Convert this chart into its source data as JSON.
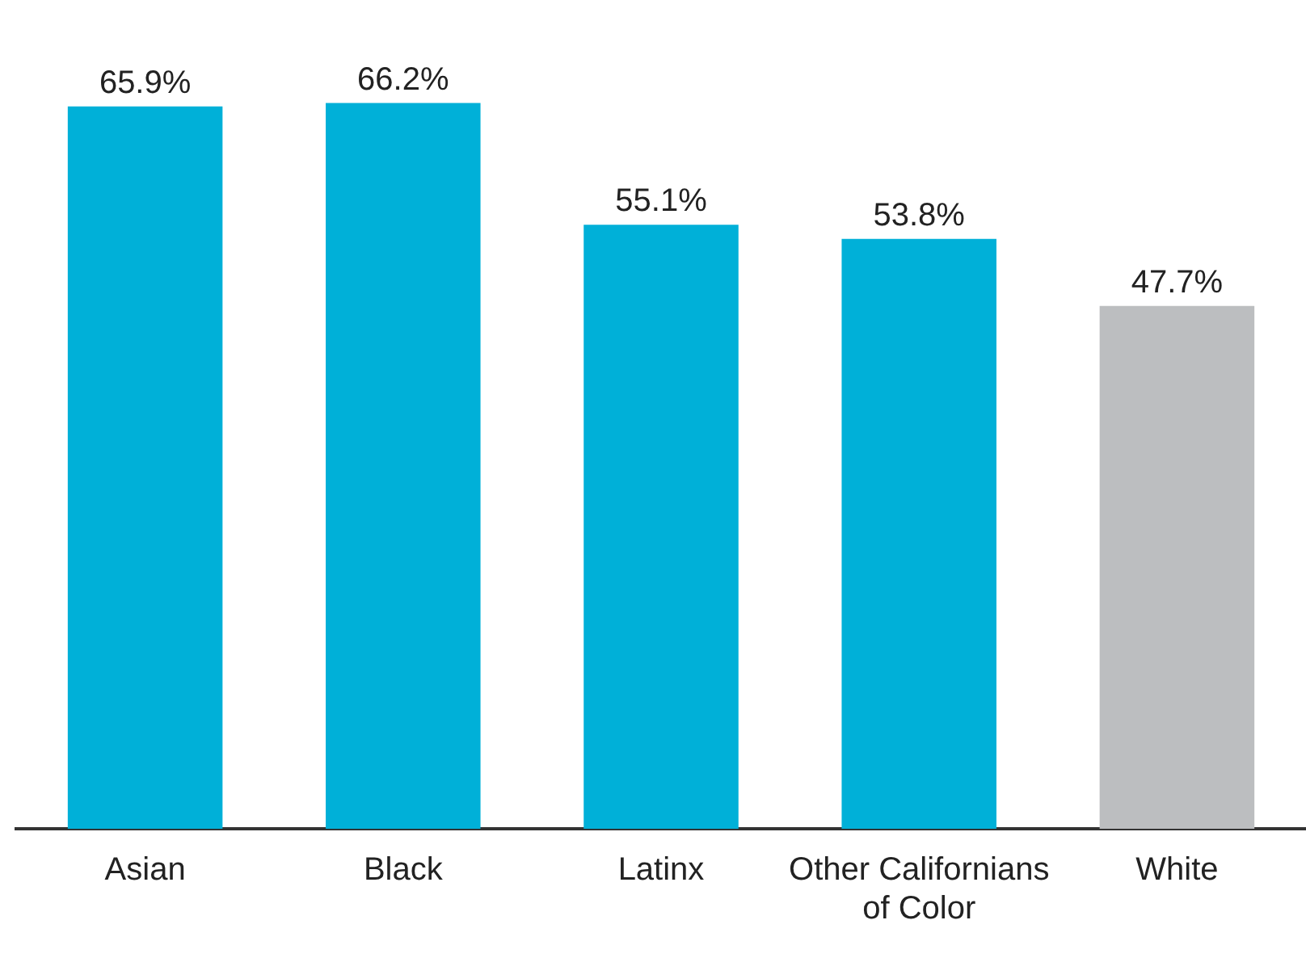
{
  "chart_data": {
    "type": "bar",
    "categories": [
      "Asian",
      "Black",
      "Latinx",
      "Other Californians of Color",
      "White"
    ],
    "values": [
      65.9,
      66.2,
      55.1,
      53.8,
      47.7
    ],
    "colors": [
      "#00b0d8",
      "#00b0d8",
      "#00b0d8",
      "#00b0d8",
      "#bcbec0"
    ],
    "value_labels": [
      "65.9%",
      "66.2%",
      "55.1%",
      "53.8%",
      "47.7%"
    ],
    "tick_labels": "x",
    "grid": false,
    "legend": false
  }
}
